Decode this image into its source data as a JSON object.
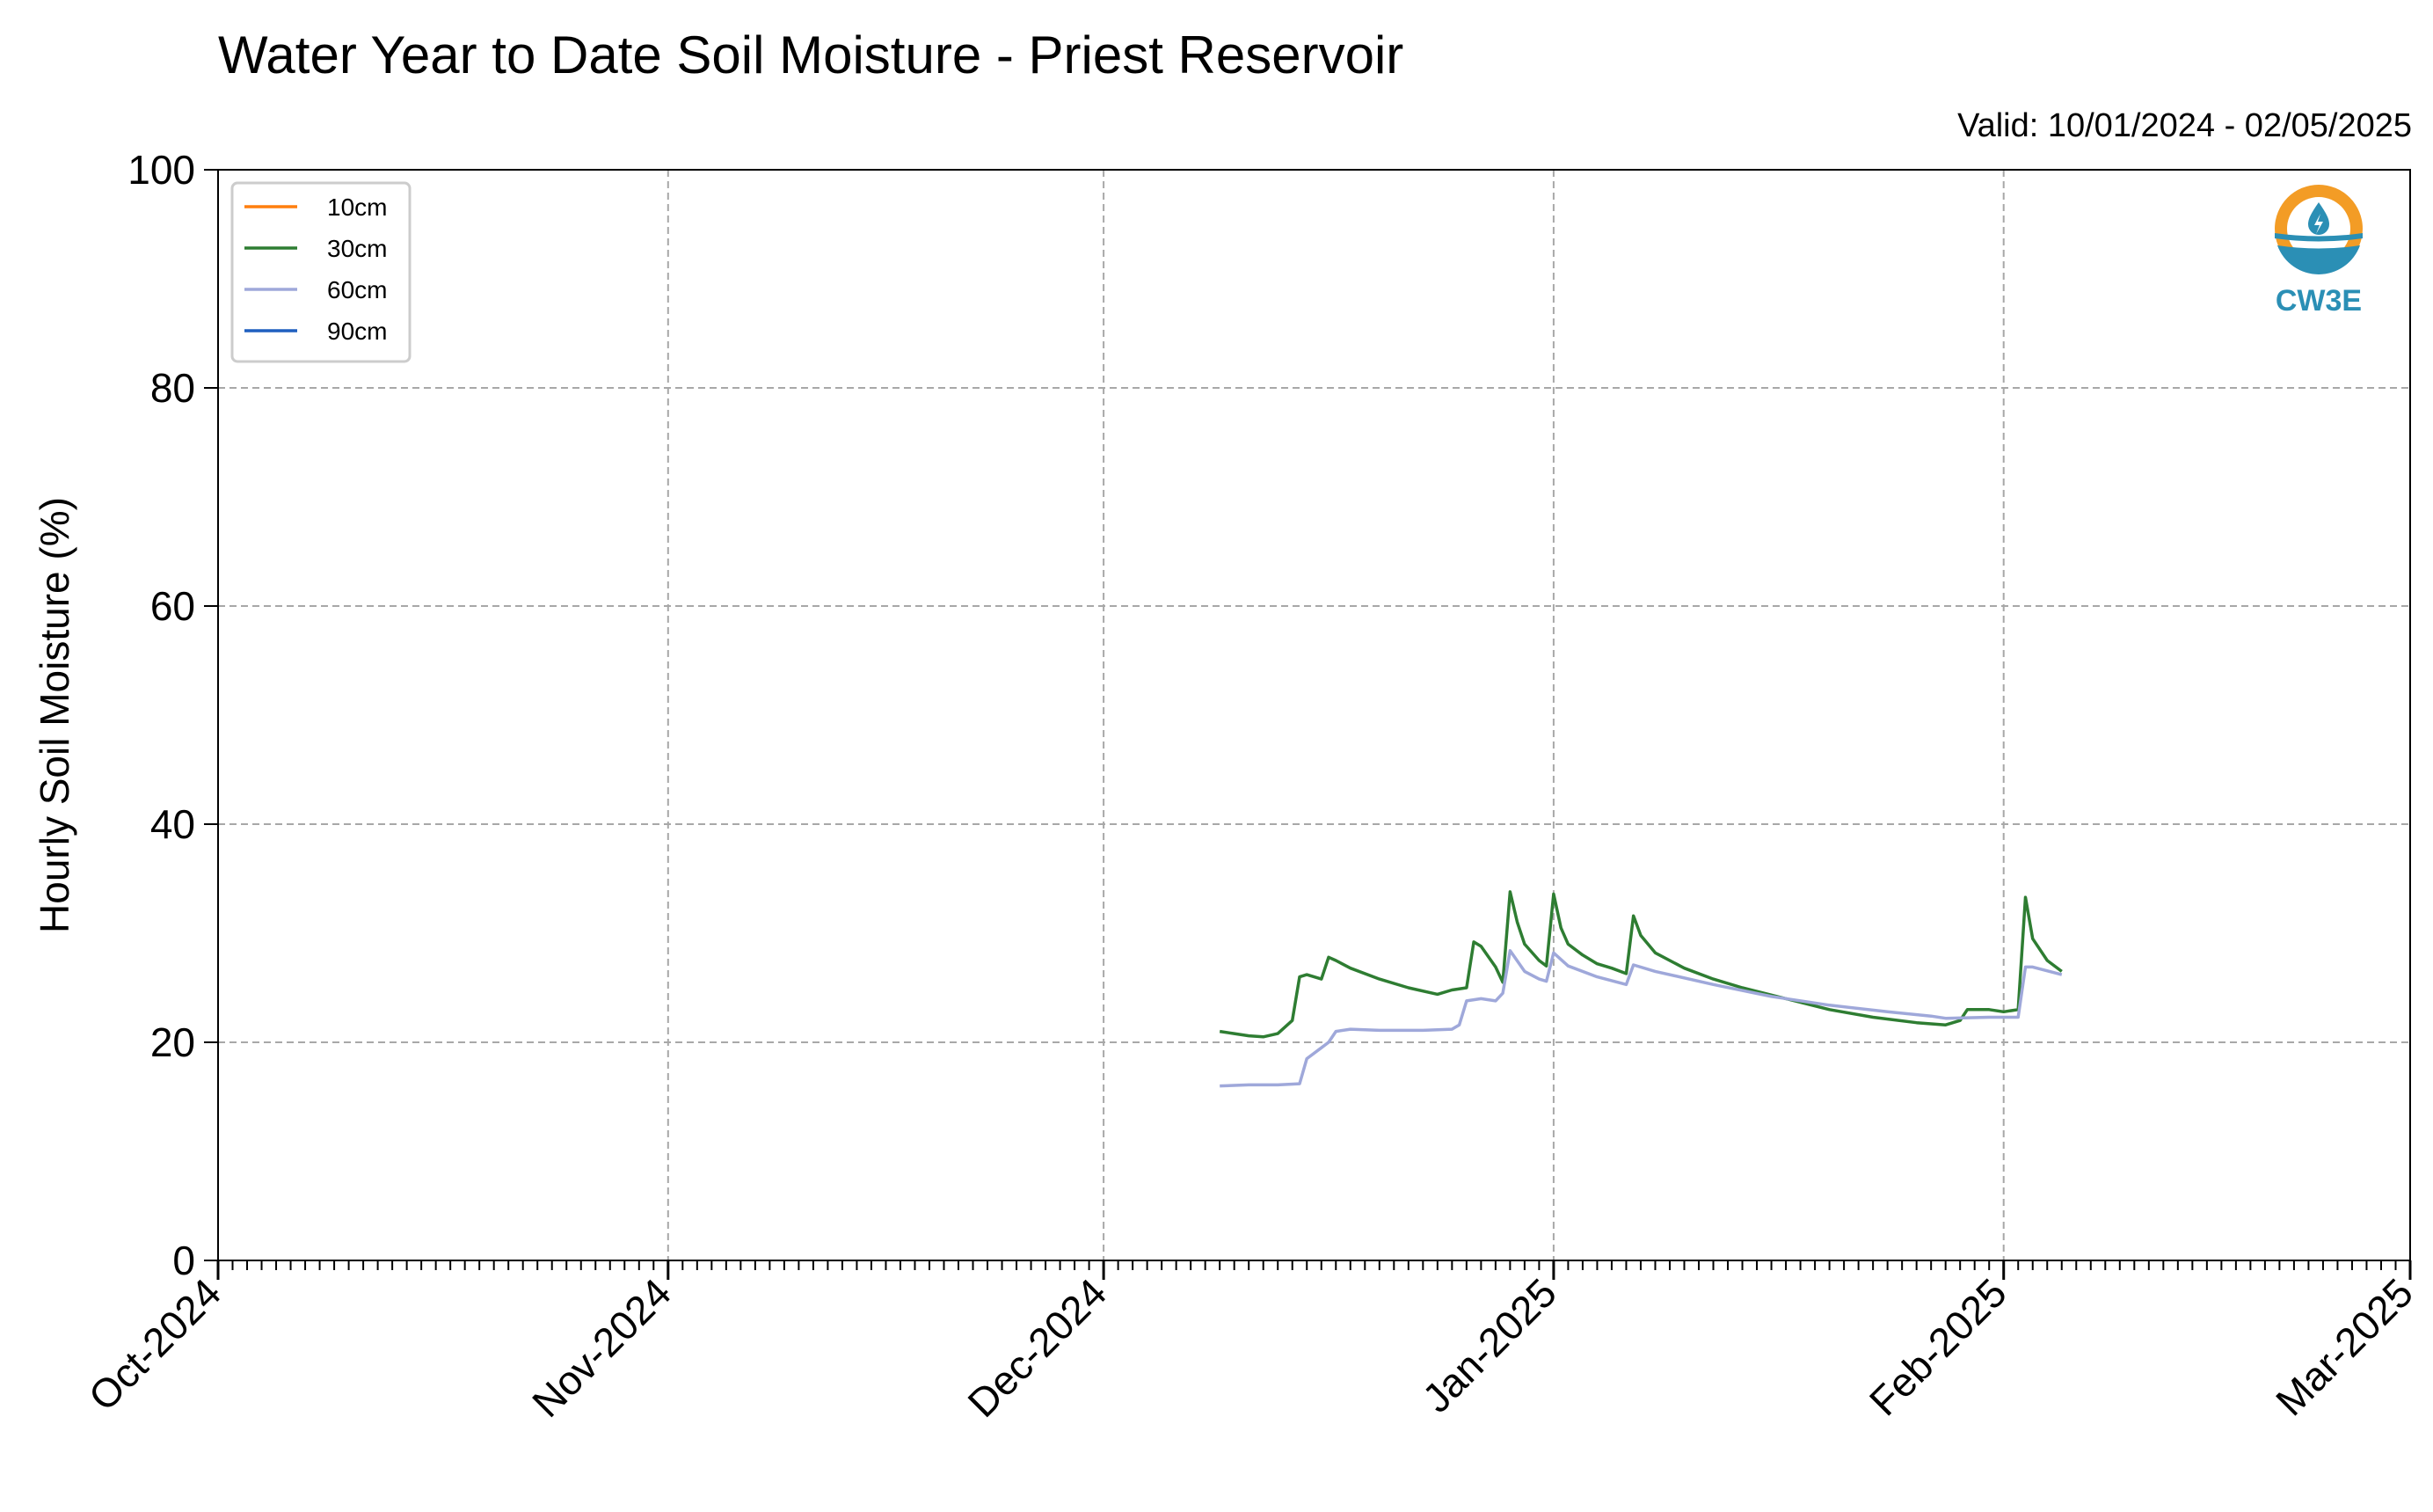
{
  "chart_data": {
    "type": "line",
    "title": "Water Year to Date Soil Moisture - Priest Reservoir",
    "subtitle": "Valid: 10/01/2024 - 02/05/2025",
    "xlabel": "",
    "ylabel": "Hourly Soil Moisture (%)",
    "x_range": [
      "2024-10-01",
      "2025-03-01"
    ],
    "x_ticks": [
      "Oct-2024",
      "Nov-2024",
      "Dec-2024",
      "Jan-2025",
      "Feb-2025",
      "Mar-2025"
    ],
    "ylim": [
      0,
      100
    ],
    "y_ticks": [
      0,
      20,
      40,
      60,
      80,
      100
    ],
    "grid": true,
    "legend_position": "top-left",
    "logo_text": "CW3E",
    "series": [
      {
        "name": "10cm",
        "color": "#ff7f0e",
        "points": []
      },
      {
        "name": "30cm",
        "color": "#2e7d32",
        "points": [
          [
            "2024-12-09",
            21.0
          ],
          [
            "2024-12-10",
            20.8
          ],
          [
            "2024-12-11",
            20.6
          ],
          [
            "2024-12-12",
            20.5
          ],
          [
            "2024-12-13",
            20.8
          ],
          [
            "2024-12-14",
            22.0
          ],
          [
            "2024-12-14.5",
            26.0
          ],
          [
            "2024-12-15",
            26.2
          ],
          [
            "2024-12-16",
            25.8
          ],
          [
            "2024-12-16.5",
            27.8
          ],
          [
            "2024-12-17",
            27.5
          ],
          [
            "2024-12-18",
            26.8
          ],
          [
            "2024-12-20",
            25.8
          ],
          [
            "2024-12-22",
            25.0
          ],
          [
            "2024-12-24",
            24.4
          ],
          [
            "2024-12-25",
            24.8
          ],
          [
            "2024-12-26",
            25.0
          ],
          [
            "2024-12-26.5",
            29.2
          ],
          [
            "2024-12-27",
            28.8
          ],
          [
            "2024-12-28",
            26.9
          ],
          [
            "2024-12-28.5",
            25.5
          ],
          [
            "2024-12-29",
            33.8
          ],
          [
            "2024-12-29.5",
            31.0
          ],
          [
            "2024-12-30",
            29.0
          ],
          [
            "2024-12-31",
            27.5
          ],
          [
            "2024-12-31.5",
            27.0
          ],
          [
            "2025-01-01",
            33.6
          ],
          [
            "2025-01-01.5",
            30.5
          ],
          [
            "2025-01-02",
            29.0
          ],
          [
            "2025-01-03",
            28.0
          ],
          [
            "2025-01-04",
            27.2
          ],
          [
            "2025-01-05",
            26.8
          ],
          [
            "2025-01-06",
            26.3
          ],
          [
            "2025-01-06.5",
            31.6
          ],
          [
            "2025-01-07",
            29.8
          ],
          [
            "2025-01-08",
            28.2
          ],
          [
            "2025-01-10",
            26.8
          ],
          [
            "2025-01-12",
            25.8
          ],
          [
            "2025-01-14",
            25.0
          ],
          [
            "2025-01-17",
            24.0
          ],
          [
            "2025-01-20",
            23.0
          ],
          [
            "2025-01-23",
            22.3
          ],
          [
            "2025-01-26",
            21.8
          ],
          [
            "2025-01-28",
            21.6
          ],
          [
            "2025-01-29",
            22.0
          ],
          [
            "2025-01-29.5",
            23.0
          ],
          [
            "2025-01-31",
            23.0
          ],
          [
            "2025-02-01",
            22.8
          ],
          [
            "2025-02-02",
            23.0
          ],
          [
            "2025-02-02.5",
            33.3
          ],
          [
            "2025-02-03",
            29.5
          ],
          [
            "2025-02-04",
            27.5
          ],
          [
            "2025-02-05",
            26.5
          ]
        ]
      },
      {
        "name": "60cm",
        "color": "#9fa8da",
        "points": [
          [
            "2024-12-09",
            16.0
          ],
          [
            "2024-12-11",
            16.1
          ],
          [
            "2024-12-13",
            16.1
          ],
          [
            "2024-12-14.5",
            16.2
          ],
          [
            "2024-12-15",
            18.5
          ],
          [
            "2024-12-16",
            19.5
          ],
          [
            "2024-12-16.5",
            20.0
          ],
          [
            "2024-12-17",
            21.0
          ],
          [
            "2024-12-18",
            21.2
          ],
          [
            "2024-12-20",
            21.1
          ],
          [
            "2024-12-23",
            21.1
          ],
          [
            "2024-12-25",
            21.2
          ],
          [
            "2024-12-25.5",
            21.6
          ],
          [
            "2024-12-26",
            23.8
          ],
          [
            "2024-12-27",
            24.0
          ],
          [
            "2024-12-28",
            23.8
          ],
          [
            "2024-12-28.5",
            24.5
          ],
          [
            "2024-12-29",
            28.4
          ],
          [
            "2024-12-30",
            26.5
          ],
          [
            "2024-12-31",
            25.8
          ],
          [
            "2024-12-31.5",
            25.6
          ],
          [
            "2025-01-01",
            28.2
          ],
          [
            "2025-01-02",
            27.0
          ],
          [
            "2025-01-04",
            26.0
          ],
          [
            "2025-01-06",
            25.3
          ],
          [
            "2025-01-06.5",
            27.1
          ],
          [
            "2025-01-08",
            26.5
          ],
          [
            "2025-01-12",
            25.3
          ],
          [
            "2025-01-16",
            24.2
          ],
          [
            "2025-01-20",
            23.4
          ],
          [
            "2025-01-24",
            22.8
          ],
          [
            "2025-01-27",
            22.4
          ],
          [
            "2025-01-28",
            22.2
          ],
          [
            "2025-01-31",
            22.3
          ],
          [
            "2025-02-02",
            22.3
          ],
          [
            "2025-02-02.5",
            26.9
          ],
          [
            "2025-02-03",
            26.9
          ],
          [
            "2025-02-05",
            26.2
          ]
        ]
      },
      {
        "name": "90cm",
        "color": "#1f5fbf",
        "points": []
      }
    ]
  }
}
